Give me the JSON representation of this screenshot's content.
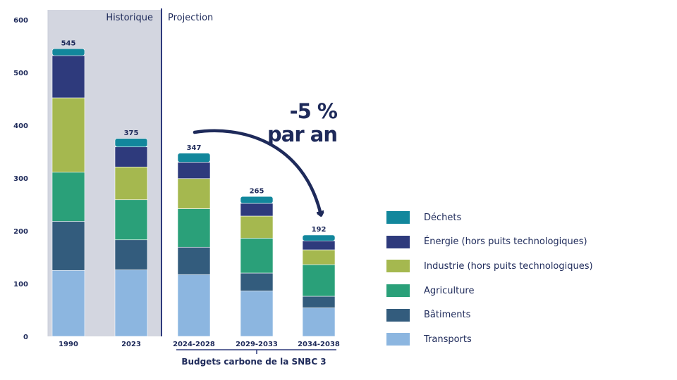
{
  "chart_data": {
    "type": "bar",
    "stacked": true,
    "categories": [
      "1990",
      "2023",
      "2024-2028",
      "2029-2033",
      "2034-2038"
    ],
    "totals": [
      "545",
      "375",
      "347",
      "265",
      "192"
    ],
    "ylim": [
      0,
      600
    ],
    "yticks": [
      "0",
      "100",
      "200",
      "300",
      "400",
      "500",
      "600"
    ],
    "series": [
      {
        "name": "Transports",
        "color": "#8cb6e0",
        "values": [
          125,
          126,
          117,
          86,
          54
        ]
      },
      {
        "name": "Bâtiments",
        "color": "#335c7d",
        "values": [
          93,
          57,
          52,
          34,
          22
        ]
      },
      {
        "name": "Agriculture",
        "color": "#2aa079",
        "values": [
          93,
          76,
          73,
          66,
          60
        ]
      },
      {
        "name": "Industrie (hors puits technologiques)",
        "color": "#a5b84f",
        "values": [
          141,
          62,
          57,
          42,
          28
        ]
      },
      {
        "name": "Énergie (hors puits technologiques)",
        "color": "#2e3a7c",
        "values": [
          80,
          38,
          31,
          24,
          17
        ]
      },
      {
        "name": "Déchets",
        "color": "#12879c",
        "values": [
          13,
          16,
          17,
          13,
          11
        ]
      }
    ],
    "legend_order": [
      "Déchets",
      "Énergie (hors puits technologiques)",
      "Industrie (hors puits technologiques)",
      "Agriculture",
      "Bâtiments",
      "Transports"
    ],
    "periods": {
      "historic": "Historique",
      "projection": "Projection"
    },
    "bracket_label": "Budgets carbone de la SNBC 3",
    "annotation": {
      "line1": "-5 %",
      "line2": "par an"
    },
    "colors": {
      "text": "#1e2a5a",
      "historic_band": "#d3d6e0",
      "divider": "#2e3a7c"
    }
  }
}
